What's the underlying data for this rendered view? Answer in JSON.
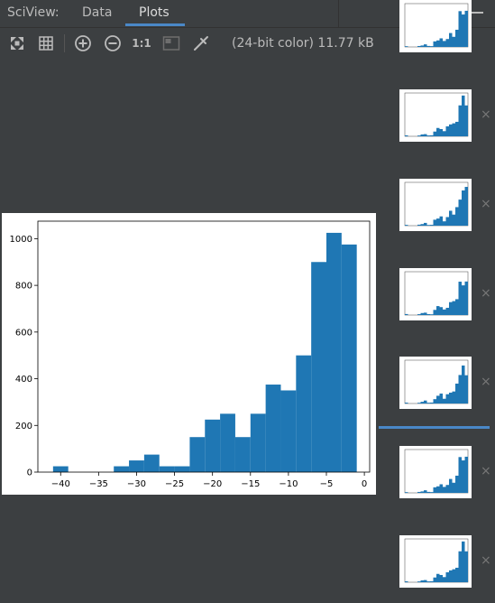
{
  "header": {
    "app_title": "SciView:",
    "tabs": [
      {
        "label": "Data",
        "active": false
      },
      {
        "label": "Plots",
        "active": true
      }
    ],
    "accent_color": "#4a88c7"
  },
  "toolbar": {
    "icons": [
      "fit-icon",
      "grid-icon",
      "zoom-in-icon",
      "zoom-out-icon",
      "actual-size-icon",
      "background-icon",
      "color-picker-icon"
    ],
    "actual_size_label": "1:1",
    "image_info": "(24-bit color) 11.77 kB"
  },
  "thumbnails": {
    "count": 7,
    "selected_index": 5,
    "close_glyph": "×"
  },
  "chart_data": {
    "type": "bar",
    "bar_color": "#1f77b4",
    "bins": [
      {
        "x0": -41.0,
        "x1": -39.0,
        "value": 25
      },
      {
        "x0": -39.0,
        "x1": -37.0,
        "value": 0
      },
      {
        "x0": -37.0,
        "x1": -35.0,
        "value": 0
      },
      {
        "x0": -35.0,
        "x1": -33.0,
        "value": 0
      },
      {
        "x0": -33.0,
        "x1": -31.0,
        "value": 25
      },
      {
        "x0": -31.0,
        "x1": -29.0,
        "value": 50
      },
      {
        "x0": -29.0,
        "x1": -27.0,
        "value": 75
      },
      {
        "x0": -27.0,
        "x1": -25.0,
        "value": 25
      },
      {
        "x0": -25.0,
        "x1": -23.0,
        "value": 25
      },
      {
        "x0": -23.0,
        "x1": -21.0,
        "value": 150
      },
      {
        "x0": -21.0,
        "x1": -19.0,
        "value": 225
      },
      {
        "x0": -19.0,
        "x1": -17.0,
        "value": 250
      },
      {
        "x0": -17.0,
        "x1": -15.0,
        "value": 150
      },
      {
        "x0": -15.0,
        "x1": -13.0,
        "value": 250
      },
      {
        "x0": -13.0,
        "x1": -11.0,
        "value": 375
      },
      {
        "x0": -11.0,
        "x1": -9.0,
        "value": 350
      },
      {
        "x0": -9.0,
        "x1": -7.0,
        "value": 500
      },
      {
        "x0": -7.0,
        "x1": -5.0,
        "value": 900
      },
      {
        "x0": -5.0,
        "x1": -3.0,
        "value": 1025
      },
      {
        "x0": -3.0,
        "x1": -1.0,
        "value": 975
      }
    ],
    "xlim": [
      -43.0,
      0.7
    ],
    "ylim": [
      0,
      1075
    ],
    "xticks": [
      -40,
      -35,
      -30,
      -25,
      -20,
      -15,
      -10,
      -5,
      0
    ],
    "xtick_labels": [
      "−40",
      "−35",
      "−30",
      "−25",
      "−20",
      "−15",
      "−10",
      "−5",
      "0"
    ],
    "yticks": [
      0,
      200,
      400,
      600,
      800,
      1000
    ],
    "ytick_labels": [
      "0",
      "200",
      "400",
      "600",
      "800",
      "1000"
    ],
    "grid": false,
    "title": "",
    "xlabel": "",
    "ylabel": ""
  }
}
